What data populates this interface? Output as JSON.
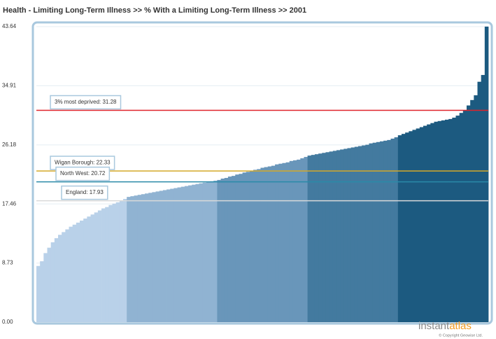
{
  "chart_data": {
    "type": "bar",
    "title": "Health - Limiting Long-Term Illness >> % With a Limiting Long-Term Illness >>  2001",
    "ylim": [
      0,
      43.64
    ],
    "yticks": [
      {
        "value": 0,
        "label": "0.00"
      },
      {
        "value": 8.73,
        "label": "8.73"
      },
      {
        "value": 17.46,
        "label": "17.46"
      },
      {
        "value": 26.18,
        "label": "26.18"
      },
      {
        "value": 34.91,
        "label": "34.91"
      },
      {
        "value": 43.64,
        "label": "43.64"
      }
    ],
    "grid": true,
    "series": [
      {
        "color": "#b9d1e9",
        "values": [
          8.3,
          9.0,
          10.2,
          11.0,
          11.8,
          12.4,
          12.9,
          13.3,
          13.7,
          14.1,
          14.4,
          14.7,
          15.0,
          15.3,
          15.6,
          15.9,
          16.2,
          16.5,
          16.8,
          17.0,
          17.3,
          17.5,
          17.7,
          17.9,
          18.2
        ]
      },
      {
        "color": "#90b3d2",
        "values": [
          18.5,
          18.6,
          18.7,
          18.8,
          18.9,
          19.0,
          19.1,
          19.2,
          19.3,
          19.4,
          19.5,
          19.6,
          19.7,
          19.8,
          19.9,
          20.0,
          20.1,
          20.2,
          20.3,
          20.4,
          20.5,
          20.6,
          20.7,
          20.8,
          20.9
        ]
      },
      {
        "color": "#6996ba",
        "values": [
          21.0,
          21.2,
          21.3,
          21.5,
          21.6,
          21.8,
          21.9,
          22.1,
          22.2,
          22.3,
          22.5,
          22.6,
          22.8,
          22.9,
          23.0,
          23.1,
          23.3,
          23.4,
          23.5,
          23.6,
          23.8,
          23.9,
          24.0,
          24.2,
          24.4
        ]
      },
      {
        "color": "#437a9f",
        "values": [
          24.6,
          24.7,
          24.8,
          24.9,
          25.0,
          25.1,
          25.2,
          25.3,
          25.4,
          25.5,
          25.6,
          25.7,
          25.8,
          25.9,
          26.0,
          26.1,
          26.2,
          26.4,
          26.5,
          26.6,
          26.7,
          26.8,
          26.9,
          27.1,
          27.3
        ]
      },
      {
        "color": "#1c5a80",
        "values": [
          27.6,
          27.8,
          28.0,
          28.2,
          28.4,
          28.6,
          28.8,
          29.0,
          29.2,
          29.4,
          29.6,
          29.7,
          29.8,
          29.9,
          30.0,
          30.2,
          30.5,
          30.9,
          31.3,
          32.0,
          32.8,
          33.5,
          35.5,
          36.5,
          43.64
        ]
      }
    ],
    "reference_lines": [
      {
        "label": "3% most deprived: 31.28",
        "value": 31.28,
        "color": "#e0232a"
      },
      {
        "label": "Wigan Borough: 22.33",
        "value": 22.33,
        "color": "#d4a92a"
      },
      {
        "label": "North West: 20.72",
        "value": 20.72,
        "color": "#2a8aa8"
      },
      {
        "label": "England: 17.93",
        "value": 17.93,
        "color": "#d9d9d9"
      }
    ]
  },
  "branding": {
    "logo_part1": "instant",
    "logo_part2": "atlas",
    "copyright": "© Copyright Geowise Ltd."
  }
}
